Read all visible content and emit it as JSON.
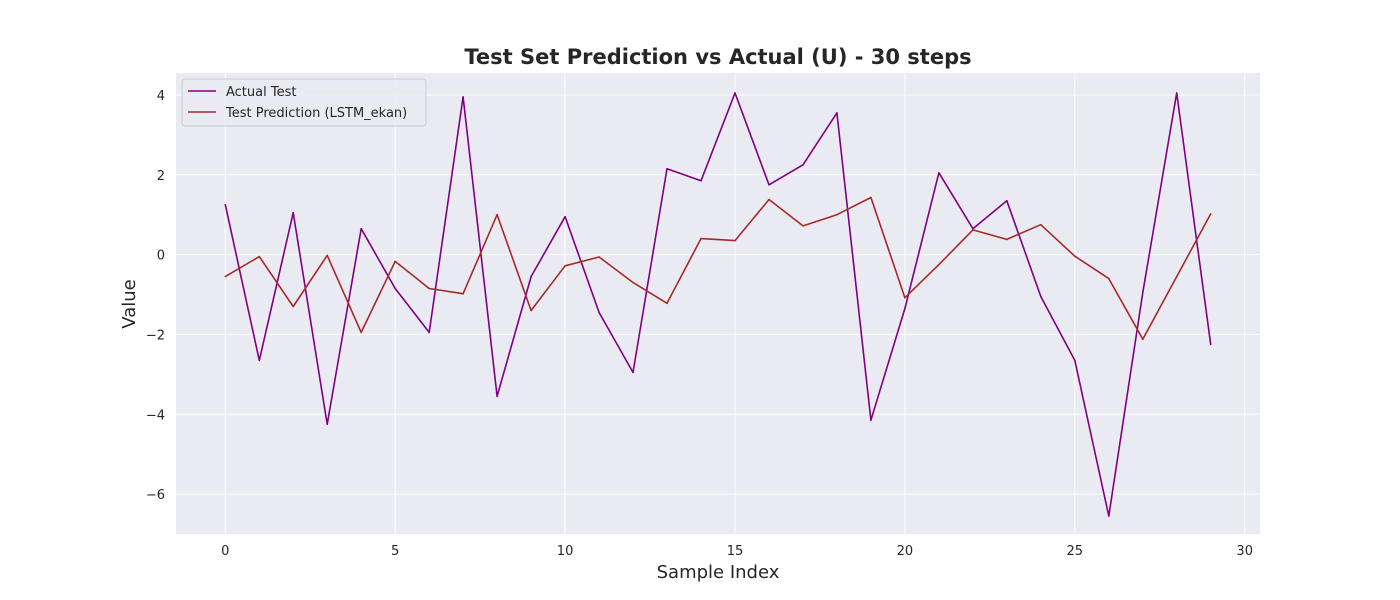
{
  "chart_data": {
    "type": "line",
    "title": "Test Set Prediction vs Actual (U) - 30 steps",
    "xlabel": "Sample Index",
    "ylabel": "Value",
    "xlim": [
      -1.45,
      30.45
    ],
    "ylim": [
      -7.0,
      4.55
    ],
    "xticks": [
      0,
      5,
      10,
      15,
      20,
      25,
      30
    ],
    "yticks": [
      -6,
      -4,
      -2,
      0,
      2,
      4
    ],
    "xtick_labels": [
      "0",
      "5",
      "10",
      "15",
      "20",
      "25",
      "30"
    ],
    "ytick_labels": [
      "−6",
      "−4",
      "−2",
      "0",
      "2",
      "4"
    ],
    "grid": true,
    "legend_position": "top-left",
    "background": "#eaeaf2",
    "x": [
      0,
      1,
      2,
      3,
      4,
      5,
      6,
      7,
      8,
      9,
      10,
      11,
      12,
      13,
      14,
      15,
      16,
      17,
      18,
      19,
      20,
      21,
      22,
      23,
      24,
      25,
      26,
      27,
      28,
      29
    ],
    "series": [
      {
        "name": "Actual Test",
        "color": "#800080",
        "values": [
          1.25,
          -2.65,
          1.05,
          -4.25,
          0.65,
          -0.85,
          -1.95,
          3.95,
          -3.55,
          -0.55,
          0.95,
          -1.45,
          -2.95,
          2.15,
          1.85,
          4.05,
          1.75,
          2.25,
          3.55,
          -4.15,
          -1.35,
          2.05,
          0.65,
          1.35,
          -1.05,
          -2.65,
          -6.55,
          -0.95,
          4.05,
          -2.25
        ]
      },
      {
        "name": "Test Prediction (LSTM_ekan)",
        "color": "#a52a2a",
        "values": [
          -0.55,
          -0.05,
          -1.3,
          -0.02,
          -1.95,
          -0.17,
          -0.85,
          -0.98,
          1.0,
          -1.4,
          -0.28,
          -0.06,
          -0.7,
          -1.22,
          0.4,
          0.35,
          1.38,
          0.72,
          1.0,
          1.43,
          -1.08,
          -0.25,
          0.62,
          0.38,
          0.75,
          -0.04,
          -0.6,
          -2.12,
          -0.55,
          1.02
        ]
      }
    ]
  }
}
